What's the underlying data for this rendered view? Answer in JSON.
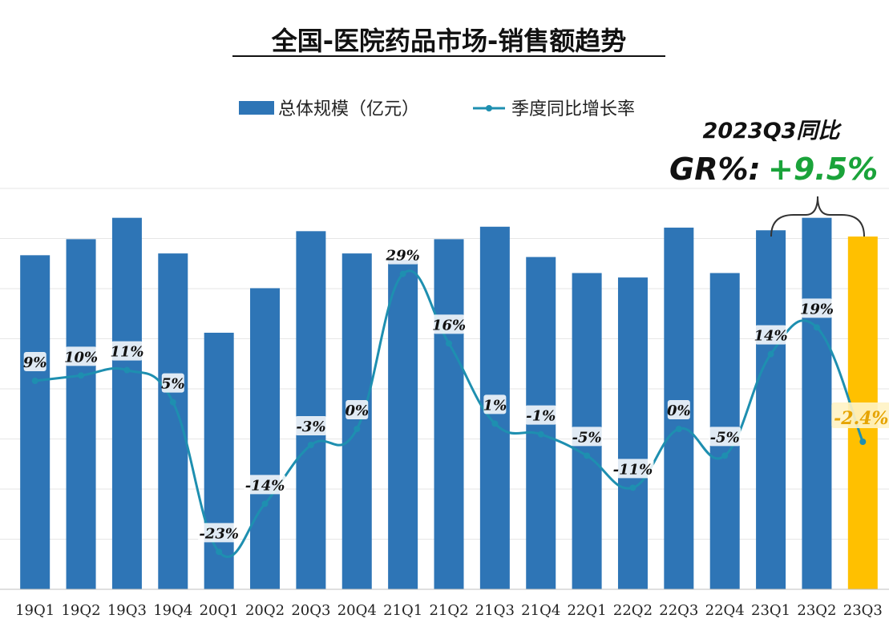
{
  "chart_data": {
    "type": "bar",
    "title": "全国-医院药品市场-销售额趋势",
    "legend": {
      "placement": "top-center",
      "bar_label": "总体规模（亿元）",
      "line_label": "季度同比增长率"
    },
    "categories": [
      "19Q1",
      "19Q2",
      "19Q3",
      "19Q4",
      "20Q1",
      "20Q2",
      "20Q3",
      "20Q4",
      "21Q1",
      "21Q2",
      "21Q3",
      "21Q4",
      "22Q1",
      "22Q2",
      "22Q3",
      "22Q4",
      "23Q1",
      "23Q2",
      "23Q3"
    ],
    "series": [
      {
        "name": "总体规模（亿元）",
        "type": "bar",
        "values": [
          3750,
          3930,
          4170,
          3770,
          2880,
          3380,
          4020,
          3770,
          3700,
          3930,
          4070,
          3730,
          3550,
          3500,
          4060,
          3550,
          4030,
          4170,
          3960
        ],
        "color": "#2e75b6",
        "highlight_index": 18,
        "highlight_color": "#ffc000"
      },
      {
        "name": "季度同比增长率",
        "type": "line",
        "unit": "%",
        "values": [
          9,
          10,
          11,
          5,
          -23,
          -14,
          -3,
          0,
          29,
          16,
          1,
          -1,
          -5,
          -11,
          0,
          -5,
          14,
          19,
          -2.4
        ],
        "labels": [
          "9%",
          "10%",
          "11%",
          "5%",
          "-23%",
          "-14%",
          "-3%",
          "0%",
          "29%",
          "16%",
          "1%",
          "-1%",
          "-5%",
          "-11%",
          "0%",
          "-5%",
          "14%",
          "19%",
          "-2.4%"
        ],
        "color": "#1e8fb0",
        "smooth": true
      }
    ],
    "bar_ylim": [
      0,
      4500
    ],
    "line_ylim": [
      -30,
      45
    ],
    "grid": "horizontal",
    "annotation": {
      "line1": "2023Q3同比",
      "line2_prefix": "GR%:",
      "line2_value": "+9.5%",
      "value_color": "#1aa33a",
      "brace_over": [
        "23Q1",
        "23Q2",
        "23Q3"
      ]
    }
  }
}
